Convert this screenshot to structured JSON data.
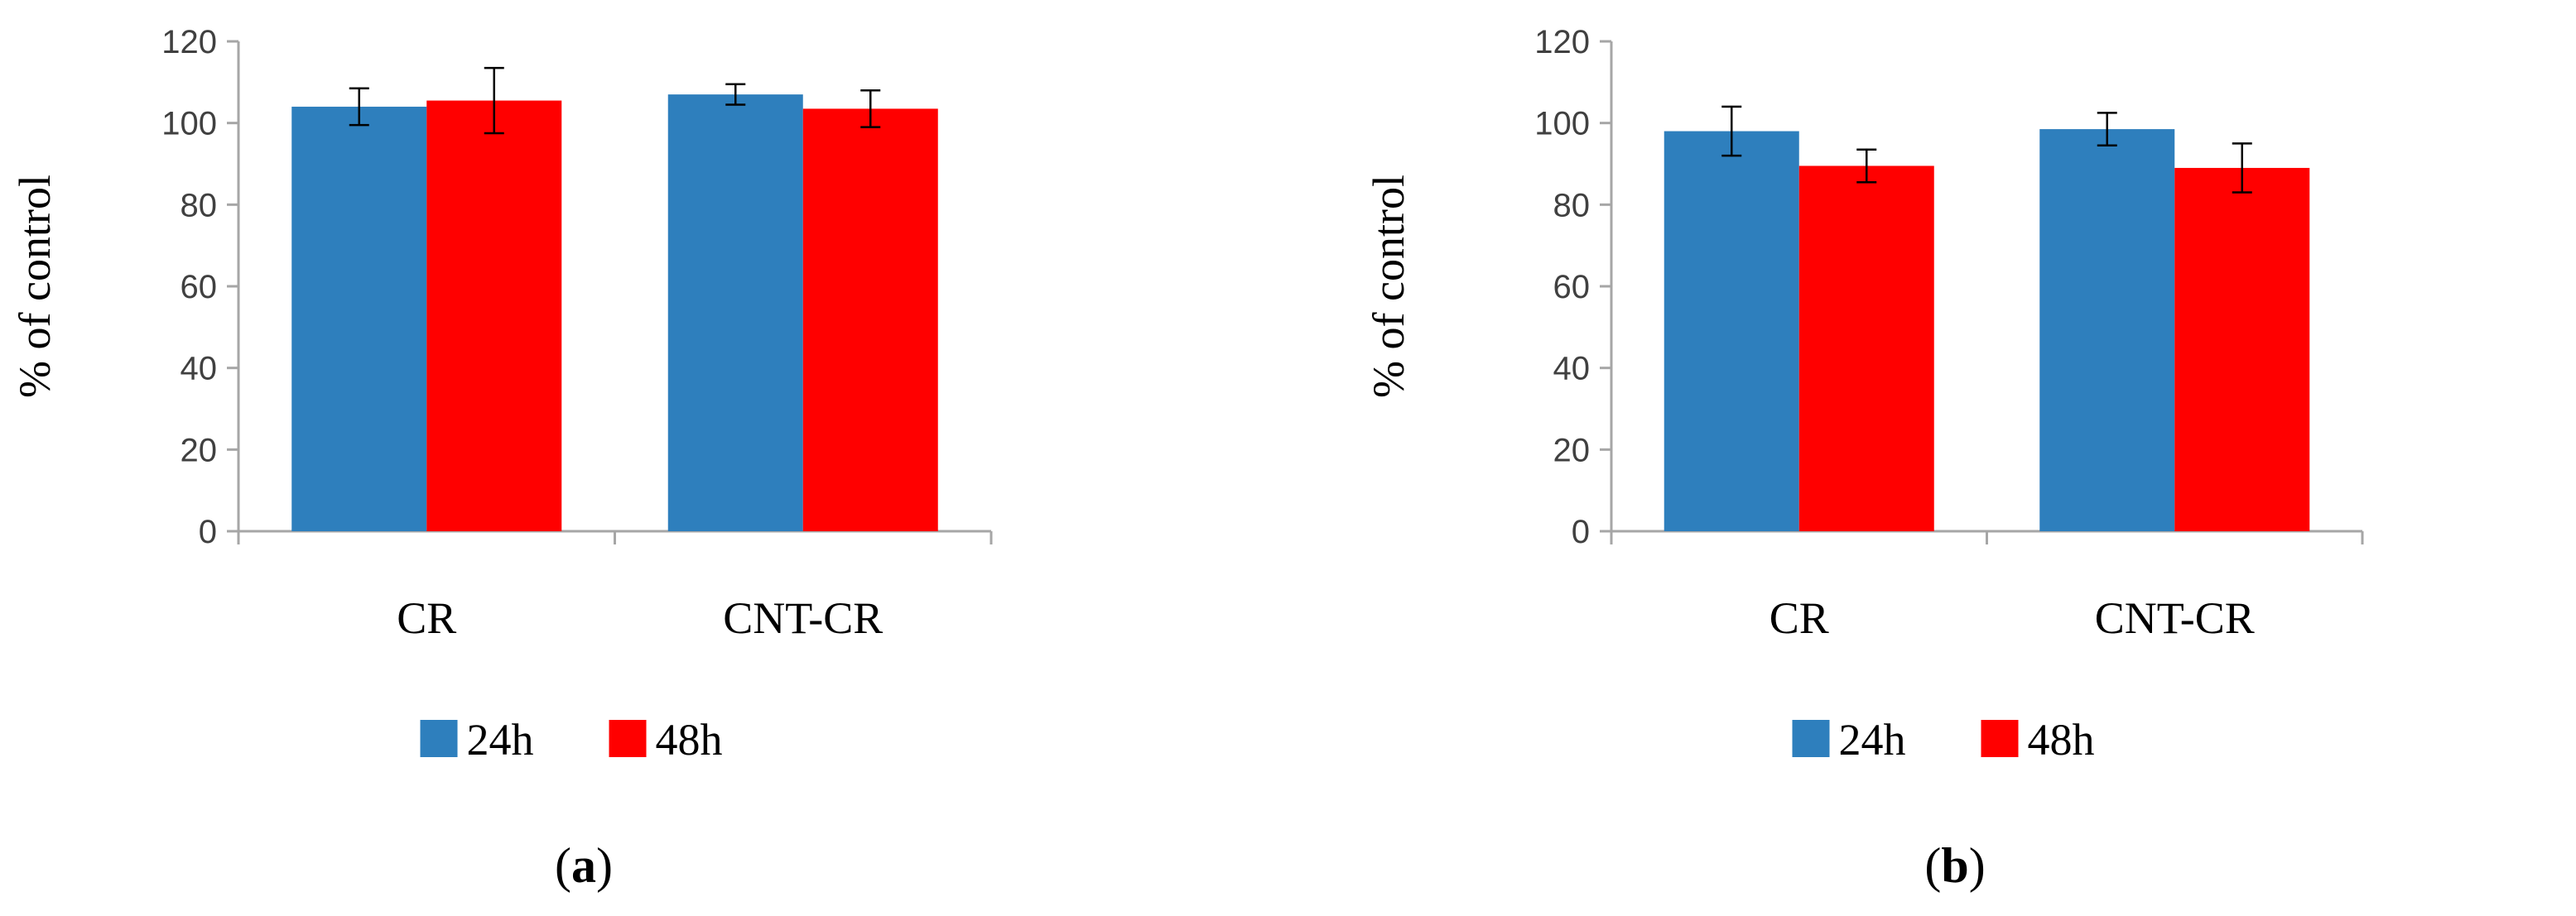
{
  "colors": {
    "series_24h": "#2e7fbd",
    "series_48h": "#ff0000",
    "axis": "#a6a6a6",
    "tick_text": "#404040"
  },
  "chart_data": [
    {
      "type": "bar",
      "panel": "a",
      "panel_label": {
        "open": "(",
        "letter": "a",
        "close": ")"
      },
      "title": "",
      "ylabel": "% of control",
      "xlabel": "",
      "ylim": [
        0,
        120
      ],
      "yticks": [
        "0",
        "20",
        "40",
        "60",
        "80",
        "100",
        "120"
      ],
      "categories": [
        "CR",
        "CNT-CR"
      ],
      "legend_position": "bottom",
      "series": [
        {
          "name": "24h",
          "values": [
            104,
            107
          ],
          "errors": [
            4.5,
            2.5
          ]
        },
        {
          "name": "48h",
          "values": [
            105.5,
            103.5
          ],
          "errors": [
            8,
            4.5
          ]
        }
      ]
    },
    {
      "type": "bar",
      "panel": "b",
      "panel_label": {
        "open": "(",
        "letter": "b",
        "close": ")"
      },
      "title": "",
      "ylabel": "%  of control",
      "xlabel": "",
      "ylim": [
        0,
        120
      ],
      "yticks": [
        "0",
        "20",
        "40",
        "60",
        "80",
        "100",
        "120"
      ],
      "categories": [
        "CR",
        "CNT-CR"
      ],
      "legend_position": "bottom",
      "series": [
        {
          "name": "24h",
          "values": [
            98,
            98.5
          ],
          "errors": [
            6,
            4
          ]
        },
        {
          "name": "48h",
          "values": [
            89.5,
            89
          ],
          "errors": [
            4,
            6
          ]
        }
      ]
    }
  ]
}
